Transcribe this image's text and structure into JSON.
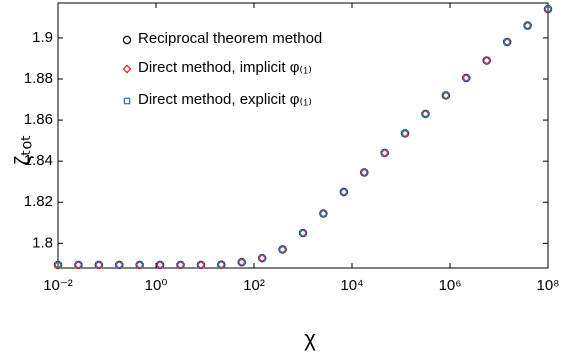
{
  "chart_data": {
    "type": "scatter",
    "xlabel": "χ",
    "ylabel": "ζₜₒₜ",
    "xscale": "log",
    "legend": "upper left",
    "xlim": [
      0.01,
      100000000
    ],
    "ylim": [
      1.788,
      1.917
    ],
    "xticks": [
      {
        "value": 0.01,
        "label": "10⁻²"
      },
      {
        "value": 1,
        "label": "10⁰"
      },
      {
        "value": 100,
        "label": "10²"
      },
      {
        "value": 10000,
        "label": "10⁴"
      },
      {
        "value": 1000000,
        "label": "10⁶"
      },
      {
        "value": 100000000,
        "label": "10⁸"
      }
    ],
    "yticks": [
      1.8,
      1.82,
      1.84,
      1.86,
      1.88,
      1.9
    ],
    "x": [
      0.01,
      0.0261,
      0.0681,
      0.178,
      0.464,
      1.21,
      3.16,
      8.25,
      21.5,
      56.2,
      147,
      383,
      1000,
      2610,
      6810,
      17800,
      46400,
      121000,
      316000,
      825000,
      2150000,
      5620000,
      14700000,
      38300000,
      100000000
    ],
    "series": [
      {
        "name": "Reciprocal theorem method",
        "color": "#000000",
        "marker": "circle",
        "values": [
          1.7895,
          1.7895,
          1.7895,
          1.7895,
          1.7895,
          1.7895,
          1.7895,
          1.7895,
          1.7896,
          1.7908,
          1.7928,
          1.797,
          1.805,
          1.8145,
          1.825,
          1.8345,
          1.844,
          1.8535,
          1.863,
          1.872,
          1.8805,
          1.889,
          1.898,
          1.906,
          1.914
        ]
      },
      {
        "name": "Direct method, implicit φ₍₁₎",
        "color": "#e0191f",
        "marker": "diamond",
        "values": [
          1.7895,
          1.7895,
          1.7895,
          1.7895,
          1.7895,
          1.7895,
          1.7895,
          1.7895,
          1.7896,
          1.7908,
          1.7928,
          1.797,
          1.805,
          1.8145,
          1.825,
          1.8345,
          1.844,
          1.8535,
          1.863,
          1.872,
          1.8805,
          1.889,
          1.898,
          1.906,
          1.914
        ]
      },
      {
        "name": "Direct method, explicit φ₍₁₎",
        "color": "#3a6fb5",
        "marker": "square",
        "values": [
          1.7895,
          1.7895,
          1.7895,
          1.7895,
          1.7895,
          1.7895,
          1.7895,
          1.7895,
          1.7896,
          1.7908,
          1.7928,
          1.797,
          1.805,
          1.8145,
          1.825,
          1.8345,
          1.844,
          1.8535,
          1.863,
          1.872,
          1.8805,
          1.889,
          1.898,
          1.906,
          1.914
        ]
      }
    ]
  }
}
